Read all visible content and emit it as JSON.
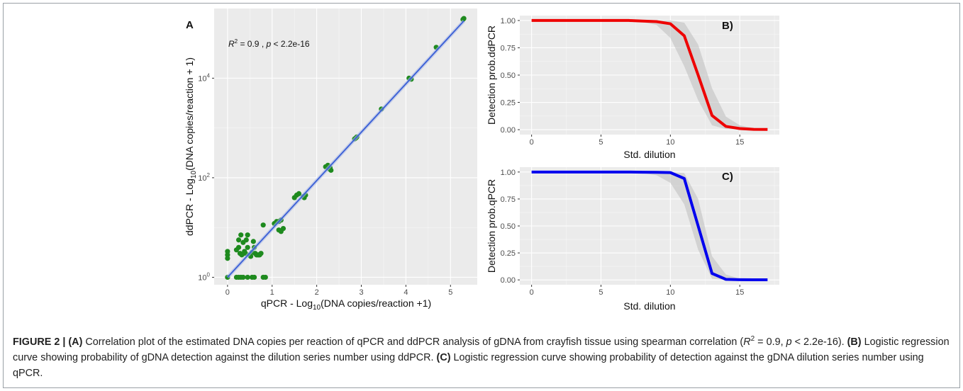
{
  "chart_data": [
    {
      "panel": "A",
      "type": "scatter",
      "title": "",
      "xlabel_prefix": "qPCR - Log",
      "xlabel_sub": "10",
      "xlabel_suffix": "(DNA copies/reaction +1)",
      "ylabel_prefix": "ddPCR - Log",
      "ylabel_sub": "10",
      "ylabel_suffix": "(DNA copies/reaction + 1)",
      "xlim": [
        -0.3,
        5.6
      ],
      "ylim_log10": [
        -0.15,
        5.4
      ],
      "x_ticks": [
        0,
        1,
        2,
        3,
        4,
        5
      ],
      "x_tick_labels": [
        "0",
        "1",
        "2",
        "3",
        "4",
        "5"
      ],
      "y_ticks_log10": [
        0,
        2,
        4
      ],
      "y_tick_base": "10",
      "y_tick_exps": [
        "0",
        "2",
        "4"
      ],
      "y_scale": "log",
      "grid": true,
      "point_color": "#1e8a1e",
      "fit_color": "#3a5fd6",
      "fit": {
        "x": [
          0,
          5.3
        ],
        "log10_y": [
          0,
          5.15
        ]
      },
      "annotation": {
        "r_label": "R",
        "r_sup": "2",
        "r_value": " = 0.9 , ",
        "p_label": "p",
        "p_value": " < 2.2e-16"
      },
      "points_x": [
        0,
        0,
        0,
        0,
        0.2,
        0.25,
        0.25,
        0.28,
        0.3,
        0.32,
        0.35,
        0.38,
        0.4,
        0.42,
        0.45,
        0.45,
        0.5,
        0.52,
        0.55,
        0.58,
        0.6,
        0.62,
        0.65,
        0.68,
        0.7,
        0.72,
        0.75,
        0.8,
        0.2,
        0.25,
        0.3,
        0.35,
        0.45,
        0.55,
        0.6,
        0.8,
        0.85,
        1.05,
        1.1,
        1.15,
        1.2,
        1.25,
        1.2,
        1.15,
        1.5,
        1.55,
        1.6,
        1.7,
        1.75,
        1.72,
        2.2,
        2.25,
        2.3,
        2.28,
        2.32,
        2.85,
        2.88,
        2.9,
        3.45,
        4.07,
        4.12,
        4.68,
        5.28,
        5.3
      ],
      "points_log10_y": [
        0,
        0.45,
        0.52,
        0.38,
        0.55,
        0.75,
        0.6,
        0.48,
        0.85,
        0.45,
        0.7,
        0.52,
        0.48,
        0.75,
        0.6,
        0.85,
        0.45,
        0.42,
        0.5,
        0.72,
        0.6,
        0.48,
        0.45,
        0.45,
        0.45,
        0.45,
        0.48,
        1.05,
        0,
        0,
        0,
        0,
        0,
        0,
        0,
        0,
        0,
        1.08,
        1.12,
        1.12,
        1.15,
        0.98,
        0.92,
        0.95,
        1.6,
        1.65,
        1.68,
        1.62,
        1.65,
        1.6,
        2.22,
        2.25,
        2.2,
        2.18,
        2.15,
        2.78,
        2.8,
        2.82,
        3.38,
        4.0,
        3.98,
        4.62,
        5.18,
        5.2
      ]
    },
    {
      "panel": "B)",
      "type": "line",
      "title": "",
      "xlabel": "Std. dilution",
      "ylabel": "Detection prob.ddPCR",
      "xlim": [
        -0.85,
        17.85
      ],
      "ylim": [
        -0.045,
        1.045
      ],
      "x_ticks": [
        0,
        5,
        10,
        15
      ],
      "x_tick_labels": [
        "0",
        "5",
        "10",
        "15"
      ],
      "y_ticks": [
        0,
        0.25,
        0.5,
        0.75,
        1
      ],
      "y_tick_labels": [
        "0.00",
        "0.25",
        "0.50",
        "0.75",
        "1.00"
      ],
      "grid": true,
      "line_color": "#ee0000",
      "x": [
        0,
        1,
        2,
        3,
        4,
        5,
        6,
        7,
        8,
        9,
        10,
        11,
        12,
        13,
        14,
        15,
        16,
        17
      ],
      "y": [
        1,
        1,
        1,
        1,
        1,
        1,
        1,
        1,
        0.995,
        0.99,
        0.97,
        0.86,
        0.5,
        0.13,
        0.03,
        0.01,
        0.003,
        0.002
      ],
      "band_upper": [
        1,
        1,
        1,
        1,
        1,
        1,
        1,
        1,
        1,
        1,
        1,
        0.98,
        0.78,
        0.38,
        0.12,
        0.04,
        0.015,
        0.01
      ],
      "band_lower": [
        1,
        1,
        1,
        1,
        1,
        1,
        1,
        1,
        0.985,
        0.96,
        0.84,
        0.58,
        0.27,
        0.04,
        0.005,
        0.001,
        0,
        0
      ]
    },
    {
      "panel": "C)",
      "type": "line",
      "title": "",
      "xlabel": "Std. dilution",
      "ylabel": "Detection prob.qPCR",
      "xlim": [
        -0.85,
        17.85
      ],
      "ylim": [
        -0.045,
        1.045
      ],
      "x_ticks": [
        0,
        5,
        10,
        15
      ],
      "x_tick_labels": [
        "0",
        "5",
        "10",
        "15"
      ],
      "y_ticks": [
        0,
        0.25,
        0.5,
        0.75,
        1
      ],
      "y_tick_labels": [
        "0.00",
        "0.25",
        "0.50",
        "0.75",
        "1.00"
      ],
      "grid": true,
      "line_color": "#0000ee",
      "x": [
        0,
        1,
        2,
        3,
        4,
        5,
        6,
        7,
        8,
        9,
        10,
        11,
        12,
        13,
        14,
        15,
        16,
        17
      ],
      "y": [
        1,
        1,
        1,
        1,
        1,
        1,
        1,
        1,
        0.998,
        0.997,
        0.995,
        0.94,
        0.5,
        0.06,
        0.005,
        0.002,
        0.001,
        0.001
      ],
      "band_upper": [
        1,
        1,
        1,
        1,
        1,
        1,
        1,
        1,
        1,
        1,
        1,
        0.99,
        0.75,
        0.22,
        0.05,
        0.01,
        0.005,
        0.003
      ],
      "band_lower": [
        1,
        1,
        1,
        1,
        1,
        1,
        1,
        1,
        0.99,
        0.97,
        0.9,
        0.7,
        0.28,
        0.01,
        0,
        0,
        0,
        0
      ]
    }
  ],
  "caption": {
    "figure_label": "FIGURE 2 | ",
    "a_label": "(A)",
    "a_text1": " Correlation plot of the estimated DNA copies per reaction of qPCR and ddPCR analysis of gDNA from crayfish tissue using spearman correlation",
    "a_paren_open": "(",
    "a_r": "R",
    "a_r_sup": "2",
    "a_r_value": " = 0.9, ",
    "a_p": "p",
    "a_p_value": " < 2.2e-16). ",
    "b_label": "(B)",
    "b_text": " Logistic regression curve showing probability of gDNA detection against the dilution series number using ddPCR. ",
    "c_label": "(C)",
    "c_text": " Logistic regression curve showing probability of detection against the gDNA dilution series number using qPCR."
  }
}
